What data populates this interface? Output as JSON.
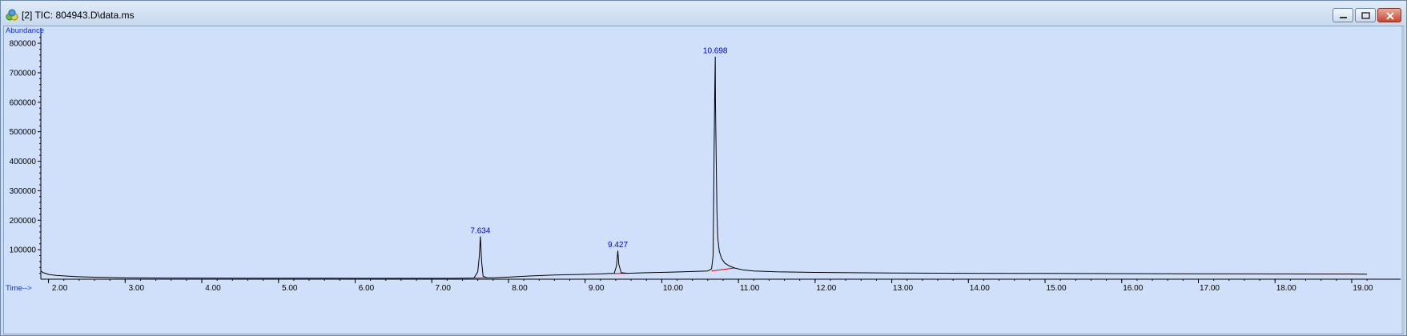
{
  "window": {
    "title": "[2] TIC: 804943.D\\data.ms",
    "buttons": [
      "minimize",
      "restore",
      "close"
    ],
    "icon": "chromatogram-app-icon"
  },
  "colors": {
    "plot_background": "#d0e0fb",
    "trace": "#000000",
    "baseline": "#e00000",
    "labels": "#0000cc"
  },
  "chart_data": {
    "type": "line",
    "title": "",
    "xlabel": "Time-->",
    "ylabel": "Abundance",
    "xlim": [
      1.9,
      19.22
    ],
    "ylim": [
      0,
      830000
    ],
    "x_ticks": [
      "2.00",
      "3.00",
      "4.00",
      "5.00",
      "6.00",
      "7.00",
      "8.00",
      "9.00",
      "10.00",
      "11.00",
      "12.00",
      "13.00",
      "14.00",
      "15.00",
      "16.00",
      "17.00",
      "18.00",
      "19.00"
    ],
    "y_ticks": [
      "100000",
      "200000",
      "300000",
      "400000",
      "500000",
      "600000",
      "700000",
      "800000"
    ],
    "grid": false,
    "series": [
      {
        "x": [
          1.9,
          1.93,
          1.96,
          2.0,
          2.1,
          2.2,
          2.35,
          2.5,
          2.75,
          3.0,
          3.5,
          4.0,
          4.5,
          5.0,
          5.5,
          6.0,
          6.5,
          7.0,
          7.3,
          7.55,
          7.6,
          7.62,
          7.634,
          7.65,
          7.67,
          7.72,
          7.8,
          8.0,
          8.3,
          8.6,
          8.9,
          9.2,
          9.38,
          9.41,
          9.427,
          9.44,
          9.47,
          9.55,
          9.8,
          10.1,
          10.4,
          10.6,
          10.65,
          10.67,
          10.68,
          10.69,
          10.698,
          10.7,
          10.71,
          10.72,
          10.73,
          10.75,
          10.78,
          10.82,
          10.88,
          10.95,
          11.05,
          11.2,
          11.5,
          12.0,
          13.0,
          14.0,
          15.0,
          16.0,
          17.0,
          18.0,
          19.0,
          19.2
        ],
        "y": [
          28000,
          22000,
          20000,
          16000,
          13000,
          11000,
          9000,
          7500,
          6000,
          5000,
          4200,
          3800,
          3500,
          3300,
          3200,
          3100,
          3000,
          3000,
          3100,
          4000,
          25000,
          80000,
          145000,
          60000,
          10000,
          5000,
          4800,
          7000,
          11000,
          14000,
          16000,
          18000,
          20000,
          45000,
          97000,
          50000,
          22000,
          20000,
          22000,
          24000,
          26000,
          28000,
          35000,
          80000,
          360000,
          610000,
          755000,
          610000,
          400000,
          230000,
          140000,
          95000,
          70000,
          55000,
          45000,
          38000,
          32000,
          28000,
          25000,
          23000,
          21000,
          20000,
          19500,
          19000,
          18500,
          18000,
          17500,
          17000
        ]
      }
    ],
    "peaks": [
      {
        "label": "7.634",
        "rt": 7.634,
        "apex": 145000,
        "base_start": [
          7.55,
          4000
        ],
        "base_end": [
          7.72,
          5000
        ]
      },
      {
        "label": "9.427",
        "rt": 9.427,
        "apex": 97000,
        "base_start": [
          9.38,
          19000
        ],
        "base_end": [
          9.55,
          20000
        ]
      },
      {
        "label": "10.698",
        "rt": 10.698,
        "apex": 755000,
        "base_start": [
          10.65,
          28000
        ],
        "base_end": [
          10.95,
          38000
        ]
      }
    ]
  }
}
